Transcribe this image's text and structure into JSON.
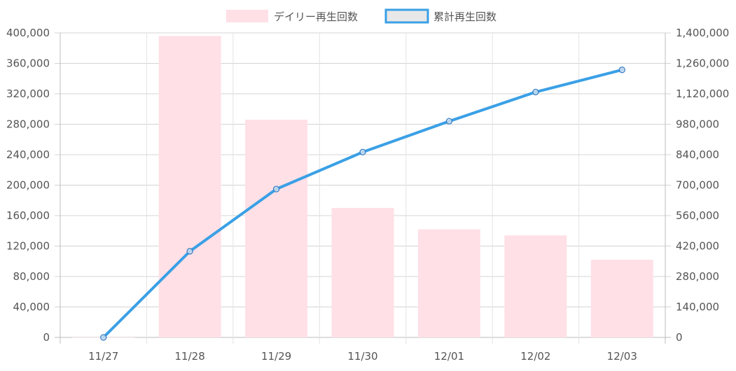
{
  "chart_data": {
    "type": "bar",
    "title": "",
    "categories": [
      "11/27",
      "11/28",
      "11/29",
      "11/30",
      "12/01",
      "12/02",
      "12/03"
    ],
    "series": [
      {
        "name": "デイリー再生回数",
        "type": "bar",
        "axis": "left",
        "values": [
          0,
          396000,
          286000,
          170000,
          142000,
          134000,
          102000
        ],
        "color": "#FFE0E6"
      },
      {
        "name": "累計再生回数",
        "type": "line",
        "axis": "right",
        "values": [
          0,
          396000,
          682000,
          852000,
          994000,
          1128000,
          1230000
        ],
        "color": "#3AA0E6"
      }
    ],
    "y_left": {
      "min": 0,
      "max": 400000,
      "ticks": [
        "0",
        "40,000",
        "80,000",
        "120,000",
        "160,000",
        "200,000",
        "240,000",
        "280,000",
        "320,000",
        "360,000",
        "400,000"
      ]
    },
    "y_right": {
      "min": 0,
      "max": 1400000,
      "ticks": [
        "0",
        "140,000",
        "280,000",
        "420,000",
        "560,000",
        "700,000",
        "840,000",
        "980,000",
        "1,120,000",
        "1,260,000",
        "1,400,000"
      ]
    },
    "grid": true,
    "legend_position": "top-center"
  }
}
